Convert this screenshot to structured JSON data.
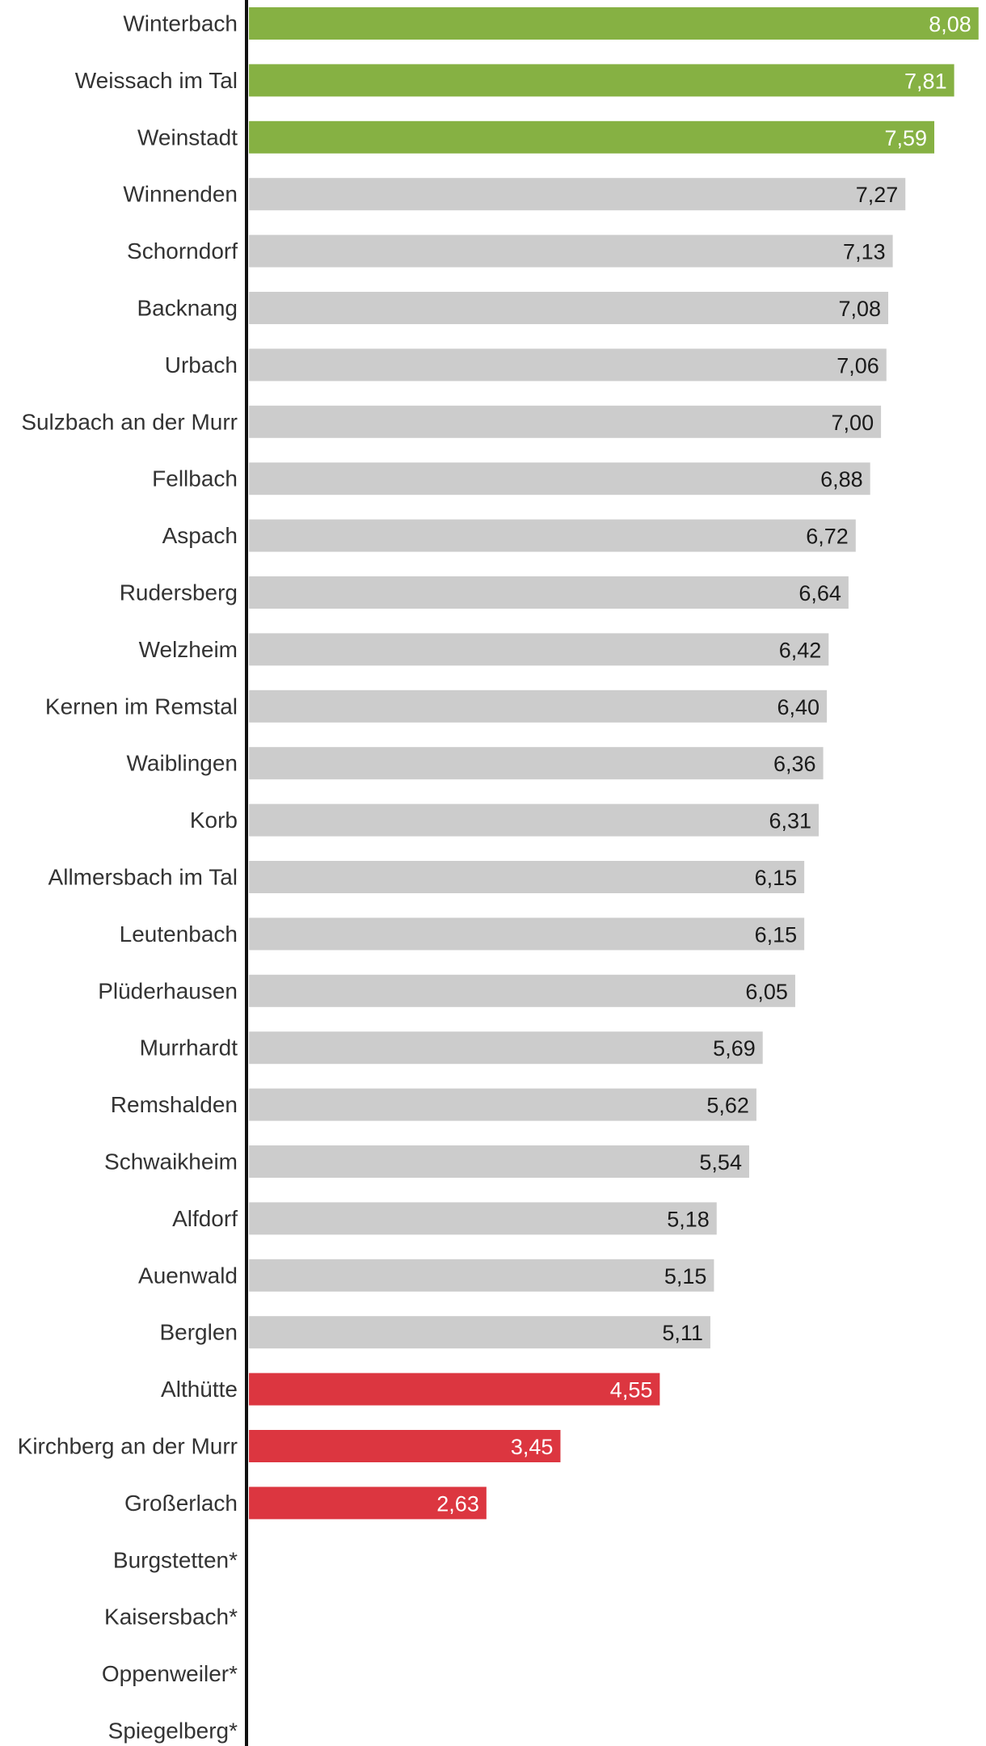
{
  "chart_data": {
    "type": "bar",
    "orientation": "horizontal",
    "title": "",
    "xlabel": "",
    "ylabel": "",
    "xlim": [
      0,
      8.1
    ],
    "grid": false,
    "legend": "none",
    "categories": [
      "Winterbach",
      "Weissach im Tal",
      "Weinstadt",
      "Winnenden",
      "Schorndorf",
      "Backnang",
      "Urbach",
      "Sulzbach an der Murr",
      "Fellbach",
      "Aspach",
      "Rudersberg",
      "Welzheim",
      "Kernen im Remstal",
      "Waiblingen",
      "Korb",
      "Allmersbach im Tal",
      "Leutenbach",
      "Plüderhausen",
      "Murrhardt",
      "Remshalden",
      "Schwaikheim",
      "Alfdorf",
      "Auenwald",
      "Berglen",
      "Althütte",
      "Kirchberg an der Murr",
      "Großerlach",
      "Burgstetten*",
      "Kaisersbach*",
      "Oppenweiler*",
      "Spiegelberg*"
    ],
    "values": [
      8.08,
      7.81,
      7.59,
      7.27,
      7.13,
      7.08,
      7.06,
      7.0,
      6.88,
      6.72,
      6.64,
      6.42,
      6.4,
      6.36,
      6.31,
      6.15,
      6.15,
      6.05,
      5.69,
      5.62,
      5.54,
      5.18,
      5.15,
      5.11,
      4.55,
      3.45,
      2.63,
      null,
      null,
      null,
      null
    ],
    "value_labels": [
      "8,08",
      "7,81",
      "7,59",
      "7,27",
      "7,13",
      "7,08",
      "7,06",
      "7,00",
      "6,88",
      "6,72",
      "6,64",
      "6,42",
      "6,40",
      "6,36",
      "6,31",
      "6,15",
      "6,15",
      "6,05",
      "5,69",
      "5,62",
      "5,54",
      "5,18",
      "5,15",
      "5,11",
      "4,55",
      "3,45",
      "2,63",
      "",
      "",
      "",
      ""
    ],
    "groups": [
      "top",
      "top",
      "top",
      "mid",
      "mid",
      "mid",
      "mid",
      "mid",
      "mid",
      "mid",
      "mid",
      "mid",
      "mid",
      "mid",
      "mid",
      "mid",
      "mid",
      "mid",
      "mid",
      "mid",
      "mid",
      "mid",
      "mid",
      "mid",
      "low",
      "low",
      "low",
      "none",
      "none",
      "none",
      "none"
    ],
    "colors": {
      "top": "#86b143",
      "mid": "#cccccc",
      "low": "#dc3640",
      "axis": "#111111",
      "label_on_dark": "#ffffff",
      "label_on_light": "#1a1a1a",
      "category_text": "#333333"
    }
  }
}
